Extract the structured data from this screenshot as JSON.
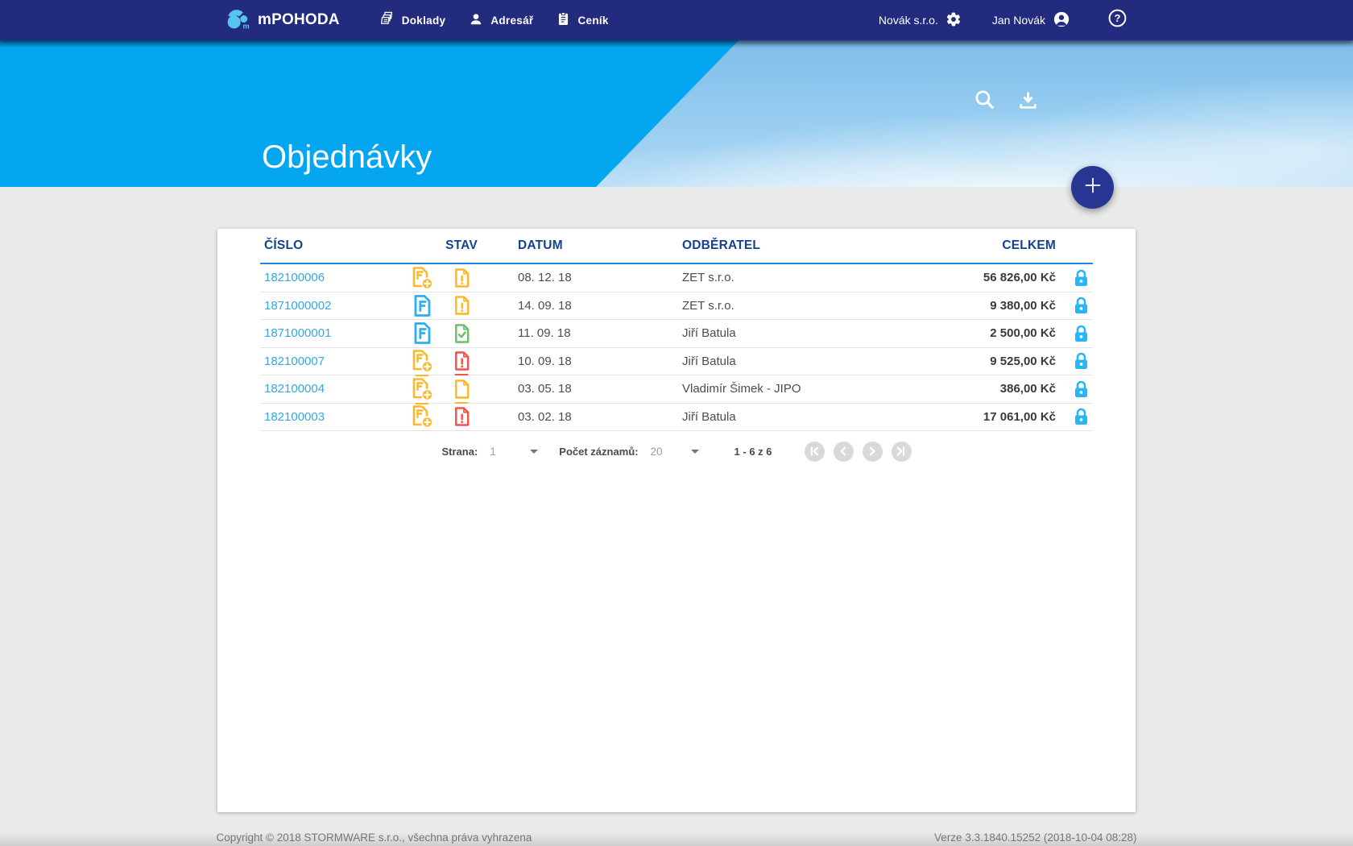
{
  "navbar": {
    "brand": "mPOHODA",
    "brand_icon": "pohoda-logo-icon",
    "menu": [
      {
        "label": "Doklady",
        "icon": "documents-icon"
      },
      {
        "label": "Adresář",
        "icon": "person-icon"
      },
      {
        "label": "Ceník",
        "icon": "pricelist-icon"
      }
    ],
    "company": "Novák s.r.o.",
    "company_icon": "gear-icon",
    "user": "Jan Novák",
    "user_icon": "account-circle-icon",
    "help_icon": "help-icon"
  },
  "hero": {
    "title": "Objednávky",
    "actions": [
      "search-icon",
      "download-icon"
    ],
    "fab_icon": "plus-icon"
  },
  "table": {
    "headers": [
      "ČÍSLO",
      "STAV",
      "DATUM",
      "ODBĚRATEL",
      "CELKEM"
    ],
    "rows": [
      {
        "number": "182100006",
        "doc_icon": "invoice-add-yellow",
        "status_icon": "status-warning-yellow",
        "date": "08. 12. 18",
        "customer": "ZET s.r.o.",
        "total": "56 826,00 Kč",
        "locked": true,
        "icon_underline": false
      },
      {
        "number": "1871000002",
        "doc_icon": "invoice-blue",
        "status_icon": "status-warning-yellow",
        "date": "14. 09. 18",
        "customer": "ZET s.r.o.",
        "total": "9 380,00 Kč",
        "locked": true,
        "icon_underline": false
      },
      {
        "number": "1871000001",
        "doc_icon": "invoice-blue",
        "status_icon": "status-check-green",
        "date": "11. 09. 18",
        "customer": "Jiří Batula",
        "total": "2 500,00 Kč",
        "locked": true,
        "icon_underline": false
      },
      {
        "number": "182100007",
        "doc_icon": "invoice-add-yellow",
        "status_icon": "status-alert-red",
        "date": "10. 09. 18",
        "customer": "Jiří Batula",
        "total": "9 525,00 Kč",
        "locked": true,
        "icon_underline": true
      },
      {
        "number": "182100004",
        "doc_icon": "invoice-add-yellow",
        "status_icon": "status-plain-yellow",
        "date": "03. 05. 18",
        "customer": "Vladimír Šimek - JIPO",
        "total": "386,00 Kč",
        "locked": true,
        "icon_underline": true
      },
      {
        "number": "182100003",
        "doc_icon": "invoice-add-yellow",
        "status_icon": "status-alert-red",
        "date": "03. 02. 18",
        "customer": "Jiří Batula",
        "total": "17 061,00 Kč",
        "locked": true,
        "icon_underline": false
      }
    ]
  },
  "pagination": {
    "page_label": "Strana:",
    "page_value": "1",
    "per_page_label": "Počet záznamů:",
    "per_page_value": "20",
    "range_text": "1 - 6 z 6",
    "buttons": [
      "first-page-icon",
      "prev-page-icon",
      "next-page-icon",
      "last-page-icon"
    ]
  },
  "footer": {
    "copyright": "Copyright © 2018 STORMWARE s.r.o., všechna práva vyhrazena",
    "version": "Verze 3.3.1840.15252 (2018-10-04 08:28)"
  },
  "colors": {
    "navbar": "#232b7e",
    "hero_blue": "#04a6f0",
    "fab": "#283593",
    "link_blue": "#33a9e0",
    "lock_blue": "#29b6f6",
    "warning_yellow": "#fbb929",
    "alert_red": "#f0544c",
    "success_green": "#6abf69",
    "header_text": "#15418e",
    "header_underline": "#1e88e5"
  }
}
